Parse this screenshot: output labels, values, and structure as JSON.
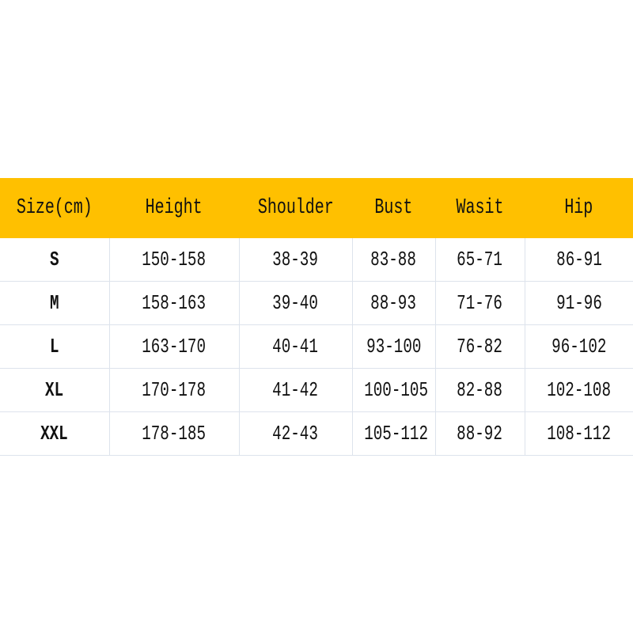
{
  "header_color": "#FFC000",
  "columns": [
    "Size(cm)",
    "Height",
    "Shoulder",
    "Bust",
    "Wasit",
    "Hip"
  ],
  "rows": [
    [
      "S",
      "150-158",
      "38-39",
      "83-88",
      "65-71",
      "86-91"
    ],
    [
      "M",
      "158-163",
      "39-40",
      "88-93",
      "71-76",
      "91-96"
    ],
    [
      "L",
      "163-170",
      "40-41",
      "93-100",
      "76-82",
      "96-102"
    ],
    [
      "XL",
      "170-178",
      "41-42",
      "100-105",
      "82-88",
      "102-108"
    ],
    [
      "XXL",
      "178-185",
      "42-43",
      "105-112",
      "88-92",
      "108-112"
    ]
  ]
}
